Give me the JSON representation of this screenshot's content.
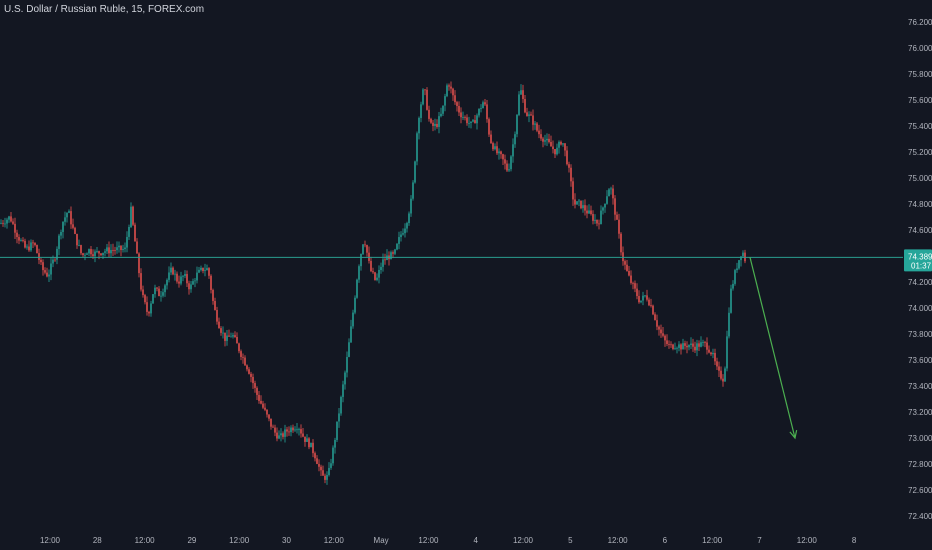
{
  "header": {
    "symbol_title": "U.S. Dollar / Russian Ruble, 15, FOREX.com"
  },
  "colors": {
    "background": "#131722",
    "axis_text": "#b2b5be",
    "up_candle": "#26a69a",
    "down_candle": "#ef5350",
    "price_line": "#2a9d8f",
    "price_badge": "#26a69a",
    "arrow": "#4caf50"
  },
  "chart_data": {
    "type": "candlestick",
    "title": "U.S. Dollar / Russian Ruble, 15, FOREX.com",
    "yaxis": {
      "range": [
        72.4,
        76.2
      ],
      "ticks": [
        "76.200",
        "76.000",
        "75.800",
        "75.600",
        "75.400",
        "75.200",
        "75.000",
        "74.800",
        "74.600",
        "74.400",
        "74.200",
        "74.000",
        "73.800",
        "73.600",
        "73.400",
        "73.200",
        "73.000",
        "72.800",
        "72.600",
        "72.400"
      ]
    },
    "xaxis": {
      "ticks": [
        "12:00",
        "28",
        "12:00",
        "29",
        "12:00",
        "30",
        "12:00",
        "May",
        "12:00",
        "4",
        "12:00",
        "5",
        "12:00",
        "6",
        "12:00",
        "7",
        "12:00",
        "8"
      ]
    },
    "path": [
      [
        0,
        74.65
      ],
      [
        10,
        74.7
      ],
      [
        18,
        74.55
      ],
      [
        26,
        74.45
      ],
      [
        34,
        74.5
      ],
      [
        42,
        74.3
      ],
      [
        48,
        74.25
      ],
      [
        55,
        74.4
      ],
      [
        62,
        74.65
      ],
      [
        68,
        74.75
      ],
      [
        75,
        74.55
      ],
      [
        82,
        74.4
      ],
      [
        88,
        74.45
      ],
      [
        95,
        74.42
      ],
      [
        105,
        74.44
      ],
      [
        115,
        74.45
      ],
      [
        125,
        74.45
      ],
      [
        131,
        74.75
      ],
      [
        136,
        74.45
      ],
      [
        142,
        74.1
      ],
      [
        148,
        73.95
      ],
      [
        154,
        74.15
      ],
      [
        160,
        74.1
      ],
      [
        166,
        74.2
      ],
      [
        172,
        74.3
      ],
      [
        178,
        74.2
      ],
      [
        184,
        74.25
      ],
      [
        190,
        74.15
      ],
      [
        196,
        74.25
      ],
      [
        203,
        74.3
      ],
      [
        208,
        74.3
      ],
      [
        214,
        74.0
      ],
      [
        220,
        73.85
      ],
      [
        226,
        73.75
      ],
      [
        232,
        73.8
      ],
      [
        238,
        73.7
      ],
      [
        244,
        73.6
      ],
      [
        250,
        73.5
      ],
      [
        256,
        73.35
      ],
      [
        262,
        73.25
      ],
      [
        268,
        73.15
      ],
      [
        274,
        73.05
      ],
      [
        280,
        73.0
      ],
      [
        286,
        73.05
      ],
      [
        292,
        73.08
      ],
      [
        298,
        73.1
      ],
      [
        304,
        73.0
      ],
      [
        310,
        72.95
      ],
      [
        316,
        72.85
      ],
      [
        322,
        72.7
      ],
      [
        328,
        72.7
      ],
      [
        334,
        72.95
      ],
      [
        340,
        73.25
      ],
      [
        346,
        73.55
      ],
      [
        352,
        73.9
      ],
      [
        358,
        74.3
      ],
      [
        364,
        74.55
      ],
      [
        370,
        74.3
      ],
      [
        376,
        74.2
      ],
      [
        382,
        74.35
      ],
      [
        388,
        74.4
      ],
      [
        394,
        74.4
      ],
      [
        400,
        74.55
      ],
      [
        406,
        74.65
      ],
      [
        412,
        74.85
      ],
      [
        418,
        75.45
      ],
      [
        424,
        75.7
      ],
      [
        430,
        75.4
      ],
      [
        436,
        75.4
      ],
      [
        442,
        75.5
      ],
      [
        448,
        75.75
      ],
      [
        454,
        75.6
      ],
      [
        460,
        75.5
      ],
      [
        466,
        75.45
      ],
      [
        472,
        75.4
      ],
      [
        478,
        75.5
      ],
      [
        484,
        75.6
      ],
      [
        490,
        75.3
      ],
      [
        496,
        75.2
      ],
      [
        502,
        75.15
      ],
      [
        508,
        75.05
      ],
      [
        514,
        75.3
      ],
      [
        520,
        75.7
      ],
      [
        526,
        75.5
      ],
      [
        532,
        75.45
      ],
      [
        538,
        75.35
      ],
      [
        544,
        75.3
      ],
      [
        550,
        75.25
      ],
      [
        556,
        75.2
      ],
      [
        562,
        75.3
      ],
      [
        568,
        75.1
      ],
      [
        574,
        74.8
      ],
      [
        580,
        74.8
      ],
      [
        586,
        74.75
      ],
      [
        592,
        74.7
      ],
      [
        598,
        74.65
      ],
      [
        604,
        74.8
      ],
      [
        610,
        74.95
      ],
      [
        616,
        74.7
      ],
      [
        622,
        74.4
      ],
      [
        628,
        74.25
      ],
      [
        634,
        74.15
      ],
      [
        640,
        74.05
      ],
      [
        646,
        74.1
      ],
      [
        652,
        74.0
      ],
      [
        658,
        73.85
      ],
      [
        664,
        73.75
      ],
      [
        670,
        73.7
      ],
      [
        676,
        73.72
      ],
      [
        682,
        73.7
      ],
      [
        688,
        73.72
      ],
      [
        694,
        73.7
      ],
      [
        700,
        73.72
      ],
      [
        706,
        73.72
      ],
      [
        712,
        73.65
      ],
      [
        718,
        73.5
      ],
      [
        724,
        73.45
      ],
      [
        730,
        74.1
      ],
      [
        736,
        74.3
      ],
      [
        742,
        74.45
      ],
      [
        746,
        74.35
      ]
    ],
    "last_price": "74.389",
    "countdown": "01:37",
    "projection": {
      "from": [
        750,
        74.39
      ],
      "to": [
        795,
        73.0
      ]
    }
  }
}
